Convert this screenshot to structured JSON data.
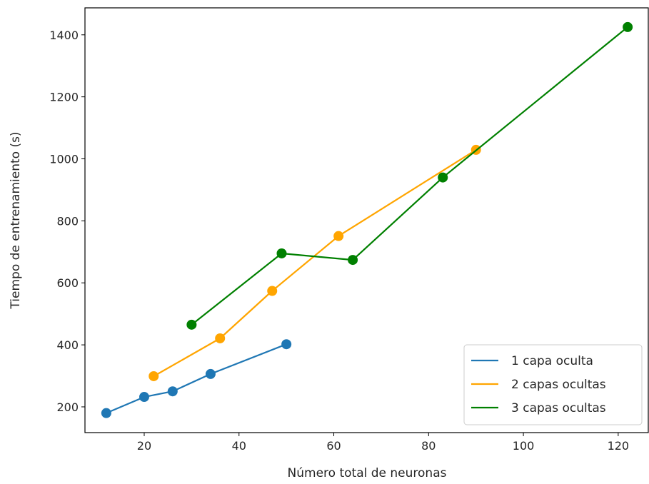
{
  "chart_data": {
    "type": "line",
    "title": "",
    "xlabel": "Número total de neuronas",
    "ylabel": "Tiempo de entrenamiento (s)",
    "xlim": [
      7.5,
      126.5
    ],
    "ylim": [
      117,
      1487
    ],
    "xticks": [
      20,
      40,
      60,
      80,
      100,
      120
    ],
    "yticks": [
      200,
      400,
      600,
      800,
      1000,
      1200,
      1400
    ],
    "grid": false,
    "legend_position": "lower-right",
    "series": [
      {
        "name": "1 capa oculta",
        "color": "#1f77b4",
        "x": [
          12,
          20,
          26,
          34,
          50
        ],
        "y": [
          180,
          232,
          250,
          306,
          402
        ]
      },
      {
        "name": "2 capas ocultas",
        "color": "#ffa500",
        "x": [
          22,
          36,
          47,
          61,
          90
        ],
        "y": [
          299,
          421,
          574,
          751,
          1029
        ]
      },
      {
        "name": "3 capas ocultas",
        "color": "#008000",
        "x": [
          30,
          49,
          64,
          83,
          122
        ],
        "y": [
          465,
          695,
          674,
          940,
          1425
        ]
      }
    ]
  }
}
